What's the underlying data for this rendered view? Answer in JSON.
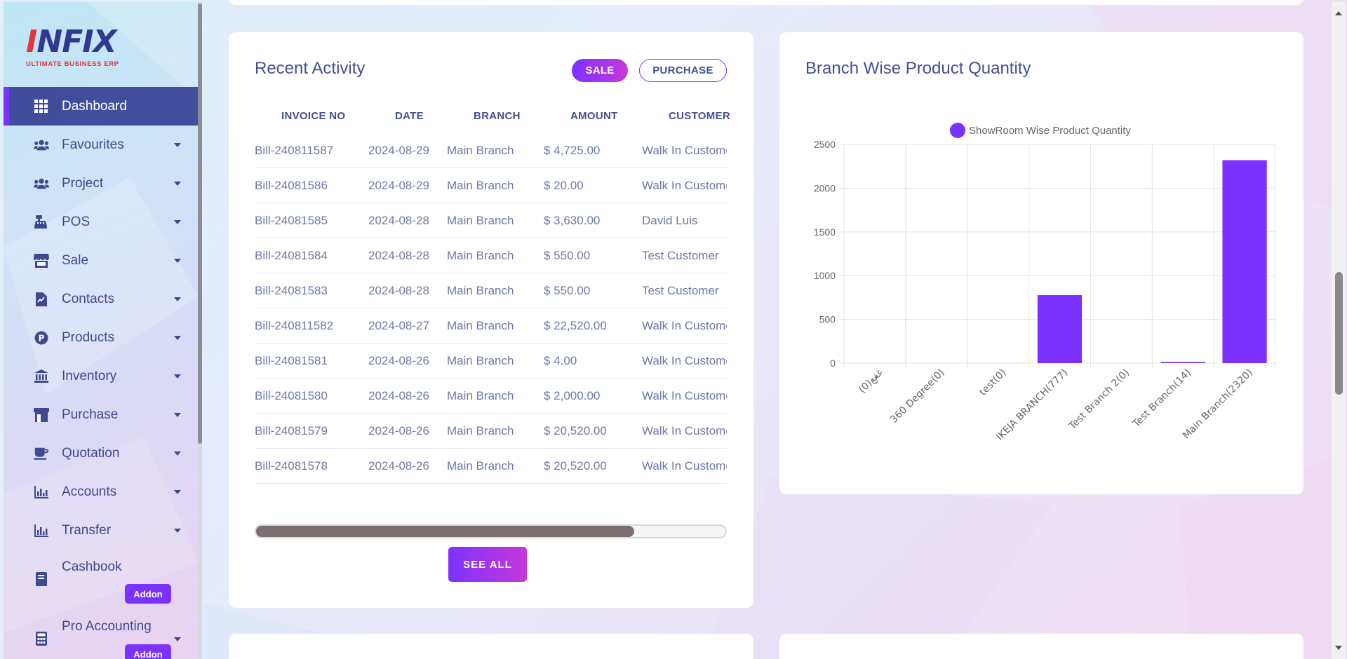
{
  "brand": {
    "logo_text_a": "I",
    "logo_text_b": "NFIX",
    "tagline": "ULTIMATE BUSINESS ERP"
  },
  "sidebar": {
    "items": [
      {
        "label": "Dashboard",
        "icon": "grid-icon",
        "active": true,
        "caret": false
      },
      {
        "label": "Favourites",
        "icon": "users-icon",
        "caret": true
      },
      {
        "label": "Project",
        "icon": "users-icon",
        "caret": true
      },
      {
        "label": "POS",
        "icon": "cash-register-icon",
        "caret": true
      },
      {
        "label": "Sale",
        "icon": "store-icon",
        "caret": true
      },
      {
        "label": "Contacts",
        "icon": "file-invoice-icon",
        "caret": true
      },
      {
        "label": "Products",
        "icon": "product-p-icon",
        "caret": true
      },
      {
        "label": "Inventory",
        "icon": "bank-icon",
        "caret": true
      },
      {
        "label": "Purchase",
        "icon": "shop-icon",
        "caret": true
      },
      {
        "label": "Quotation",
        "icon": "coffee-cup-icon",
        "caret": true
      },
      {
        "label": "Accounts",
        "icon": "bar-chart-icon",
        "caret": true
      },
      {
        "label": "Transfer",
        "icon": "bar-chart-icon",
        "caret": true
      },
      {
        "label": "Cashbook",
        "icon": "book-icon",
        "caret": false,
        "badge": "Addon"
      },
      {
        "label": "Pro Accounting",
        "icon": "calculator-icon",
        "caret": true,
        "badge": "Addon"
      }
    ]
  },
  "recent_activity": {
    "title": "Recent Activity",
    "sale_label": "SALE",
    "purchase_label": "PURCHASE",
    "columns": [
      "INVOICE NO",
      "DATE",
      "BRANCH",
      "AMOUNT",
      "CUSTOMER"
    ],
    "rows": [
      [
        "Bill-240811587",
        "2024-08-29",
        "Main Branch",
        "$ 4,725.00",
        "Walk In Customer"
      ],
      [
        "Bill-24081586",
        "2024-08-29",
        "Main Branch",
        "$ 20.00",
        "Walk In Customer"
      ],
      [
        "Bill-24081585",
        "2024-08-28",
        "Main Branch",
        "$ 3,630.00",
        "David Luis"
      ],
      [
        "Bill-24081584",
        "2024-08-28",
        "Main Branch",
        "$ 550.00",
        "Test Customer"
      ],
      [
        "Bill-24081583",
        "2024-08-28",
        "Main Branch",
        "$ 550.00",
        "Test Customer"
      ],
      [
        "Bill-240811582",
        "2024-08-27",
        "Main Branch",
        "$ 22,520.00",
        "Walk In Customer"
      ],
      [
        "Bill-24081581",
        "2024-08-26",
        "Main Branch",
        "$ 4.00",
        "Walk In Customer"
      ],
      [
        "Bill-24081580",
        "2024-08-26",
        "Main Branch",
        "$ 2,000.00",
        "Walk In Customer"
      ],
      [
        "Bill-24081579",
        "2024-08-26",
        "Main Branch",
        "$ 20,520.00",
        "Walk In Customer"
      ],
      [
        "Bill-24081578",
        "2024-08-26",
        "Main Branch",
        "$ 20,520.00",
        "Walk In Customer"
      ]
    ],
    "see_all_label": "SEE ALL"
  },
  "branch_card": {
    "title": "Branch Wise Product Quantity"
  },
  "chart_data": {
    "type": "bar",
    "series": [
      {
        "name": "ShowRoom Wise Product Quantity",
        "color": "#7c32ff",
        "values": [
          0,
          0,
          0,
          777,
          0,
          14,
          2320
        ]
      }
    ],
    "categories": [
      "غغغ(0)",
      "360 Degree(0)",
      "test(0)",
      "IKEJA BRANCH(777)",
      "Test Branch 2(0)",
      "Test Branch(14)",
      "Main Branch(2320)"
    ],
    "ylim": [
      0,
      2500
    ],
    "yticks": [
      0,
      500,
      1000,
      1500,
      2000,
      2500
    ],
    "grid": true,
    "legend": "top"
  },
  "colors": {
    "primary": "#415094",
    "accent": "#7c32ff",
    "accent_end": "#c738d8"
  }
}
